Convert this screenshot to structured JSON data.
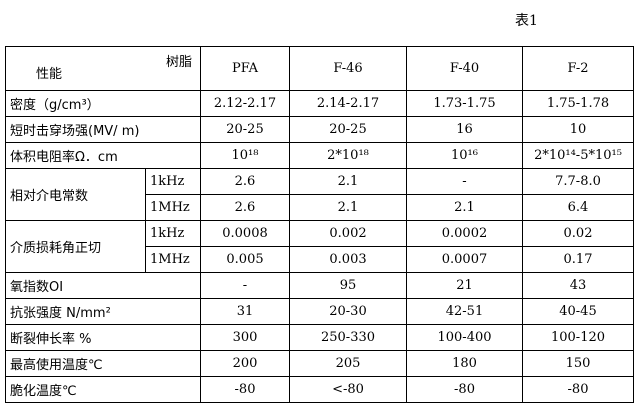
{
  "caption": "表1",
  "header": {
    "resin": "树脂",
    "property": "性能",
    "cols": [
      "PFA",
      "F-46",
      "F-40",
      "F-2"
    ]
  },
  "rows": [
    {
      "label": "密度（g/cm³）",
      "values": [
        "2.12-2.17",
        "2.14-2.17",
        "1.73-1.75",
        "1.75-1.78"
      ]
    },
    {
      "label": "短时击穿场强(MV/ m)",
      "values": [
        "20-25",
        "20-25",
        "16",
        "10"
      ]
    },
    {
      "label": "体积电阻率Ω．cm",
      "values": [
        "10¹⁸",
        "2*10¹⁸",
        "10¹⁶",
        "2*10¹⁴-5*10¹⁵"
      ]
    },
    {
      "label": "相对介电常数",
      "sub": "1kHz",
      "values": [
        "2.6",
        "2.1",
        "-",
        "7.7-8.0"
      ]
    },
    {
      "sub": "1MHz",
      "values": [
        "2.6",
        "2.1",
        "2.1",
        "6.4"
      ]
    },
    {
      "label": "介质损耗角正切",
      "sub": "1kHz",
      "values": [
        "0.0008",
        "0.002",
        "0.0002",
        "0.02"
      ]
    },
    {
      "sub": "1MHz",
      "values": [
        "0.005",
        "0.003",
        "0.0007",
        "0.17"
      ]
    },
    {
      "label": "氧指数OI",
      "values": [
        "-",
        "95",
        "21",
        "43"
      ]
    },
    {
      "label": "抗张强度  N/mm²",
      "values": [
        "31",
        "20-30",
        "42-51",
        "40-45"
      ]
    },
    {
      "label": "断裂伸长率  %",
      "values": [
        "300",
        "250-330",
        "100-400",
        "100-120"
      ]
    },
    {
      "label": "最高使用温度℃",
      "values": [
        "200",
        "205",
        "180",
        "150"
      ]
    },
    {
      "label": "脆化温度℃",
      "values": [
        "-80",
        "<-80",
        "-80",
        "-80"
      ]
    }
  ]
}
